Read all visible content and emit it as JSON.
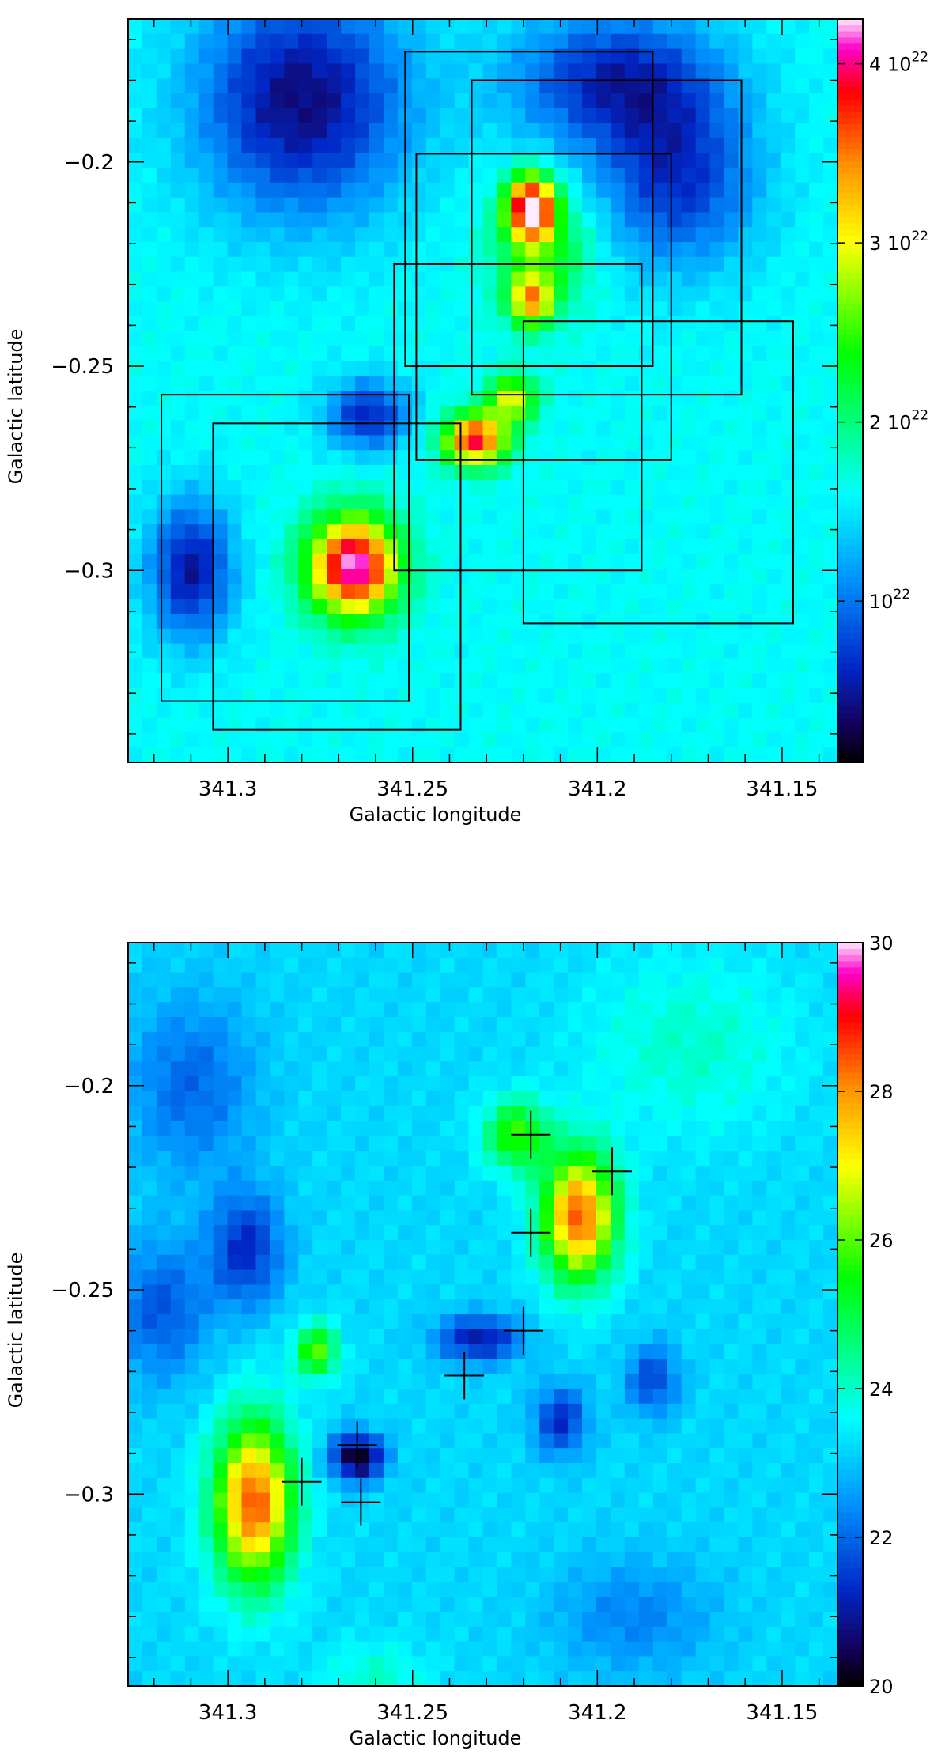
{
  "chart_data": [
    {
      "type": "heatmap",
      "title": "",
      "xlabel": "Galactic longitude",
      "ylabel": "Galactic latitude",
      "x_ticks": [
        "341.3",
        "341.25",
        "341.2",
        "341.15"
      ],
      "y_ticks": [
        "−0.2",
        "−0.25",
        "−0.3"
      ],
      "x_tick_values": [
        341.3,
        341.25,
        341.2,
        341.15
      ],
      "y_tick_values": [
        -0.2,
        -0.25,
        -0.3
      ],
      "xlim": [
        341.327,
        341.135
      ],
      "ylim": [
        -0.347,
        -0.165
      ],
      "colorbar": {
        "range": [
          1e+21,
          4.25e+22
        ],
        "ticks": [
          {
            "value": 4e+22,
            "mant": "4",
            "exp": "22"
          },
          {
            "value": 3e+22,
            "mant": "3",
            "exp": "22"
          },
          {
            "value": 2e+22,
            "mant": "2",
            "exp": "22"
          },
          {
            "value": 1e+22,
            "mant": "",
            "exp": "22"
          }
        ],
        "base": "10"
      },
      "background": 1.6e+22,
      "sources": [
        {
          "l": 341.218,
          "b": -0.211,
          "peak": 4.2e+22,
          "sl": 0.0045,
          "sb": 0.0055
        },
        {
          "l": 341.218,
          "b": -0.234,
          "peak": 3.2e+22,
          "sl": 0.004,
          "sb": 0.0045
        },
        {
          "l": 341.233,
          "b": -0.268,
          "peak": 3.9e+22,
          "sl": 0.006,
          "sb": 0.0045
        },
        {
          "l": 341.223,
          "b": -0.258,
          "peak": 3e+22,
          "sl": 0.0045,
          "sb": 0.004
        },
        {
          "l": 341.266,
          "b": -0.299,
          "peak": 4.25e+22,
          "sl": 0.0085,
          "sb": 0.0085
        },
        {
          "l": 341.215,
          "b": -0.222,
          "peak": 2.4e+22,
          "sl": 0.009,
          "sb": 0.01
        },
        {
          "l": 341.262,
          "b": -0.262,
          "peak": 6e+21,
          "sl": 0.008,
          "sb": 0.006
        },
        {
          "l": 341.178,
          "b": -0.205,
          "peak": 7e+21,
          "sl": 0.015,
          "sb": 0.015
        },
        {
          "l": 341.31,
          "b": -0.3,
          "peak": 5e+21,
          "sl": 0.008,
          "sb": 0.012
        },
        {
          "l": 341.28,
          "b": -0.185,
          "peak": 4e+21,
          "sl": 0.02,
          "sb": 0.02
        },
        {
          "l": 341.195,
          "b": -0.18,
          "peak": 6e+21,
          "sl": 0.02,
          "sb": 0.012
        }
      ],
      "boxes": [
        {
          "l1": 341.252,
          "l2": 341.185,
          "b1": -0.173,
          "b2": -0.25
        },
        {
          "l1": 341.234,
          "l2": 341.161,
          "b1": -0.18,
          "b2": -0.257
        },
        {
          "l1": 341.249,
          "l2": 341.18,
          "b1": -0.198,
          "b2": -0.273
        },
        {
          "l1": 341.255,
          "l2": 341.188,
          "b1": -0.225,
          "b2": -0.3
        },
        {
          "l1": 341.22,
          "l2": 341.147,
          "b1": -0.239,
          "b2": -0.313
        },
        {
          "l1": 341.318,
          "l2": 341.251,
          "b1": -0.257,
          "b2": -0.332
        },
        {
          "l1": 341.304,
          "l2": 341.237,
          "b1": -0.264,
          "b2": -0.339
        }
      ]
    },
    {
      "type": "heatmap",
      "title": "",
      "xlabel": "Galactic longitude",
      "ylabel": "Galactic latitude",
      "x_ticks": [
        "341.3",
        "341.25",
        "341.2",
        "341.15"
      ],
      "y_ticks": [
        "−0.2",
        "−0.25",
        "−0.3"
      ],
      "x_tick_values": [
        341.3,
        341.25,
        341.2,
        341.15
      ],
      "y_tick_values": [
        -0.2,
        -0.25,
        -0.3
      ],
      "xlim": [
        341.327,
        341.135
      ],
      "ylim": [
        -0.347,
        -0.165
      ],
      "colorbar": {
        "range": [
          20,
          30
        ],
        "ticks": [
          {
            "value": 30,
            "label": "30"
          },
          {
            "value": 28,
            "label": "28"
          },
          {
            "value": 26,
            "label": "26"
          },
          {
            "value": 24,
            "label": "24"
          },
          {
            "value": 22,
            "label": "22"
          },
          {
            "value": 20,
            "label": "20"
          }
        ]
      },
      "background": 23.2,
      "sources": [
        {
          "l": 341.205,
          "b": -0.232,
          "peak": 28.5,
          "sl": 0.007,
          "sb": 0.011
        },
        {
          "l": 341.222,
          "b": -0.212,
          "peak": 25.8,
          "sl": 0.006,
          "sb": 0.006
        },
        {
          "l": 341.293,
          "b": -0.302,
          "peak": 28.5,
          "sl": 0.0075,
          "sb": 0.014
        },
        {
          "l": 341.276,
          "b": -0.265,
          "peak": 26.0,
          "sl": 0.004,
          "sb": 0.0045
        },
        {
          "l": 341.265,
          "b": -0.291,
          "peak": 20.0,
          "sl": 0.005,
          "sb": 0.004
        },
        {
          "l": 341.232,
          "b": -0.262,
          "peak": 21.0,
          "sl": 0.008,
          "sb": 0.004
        },
        {
          "l": 341.21,
          "b": -0.282,
          "peak": 21.3,
          "sl": 0.005,
          "sb": 0.006
        },
        {
          "l": 341.185,
          "b": -0.272,
          "peak": 21.6,
          "sl": 0.005,
          "sb": 0.006
        },
        {
          "l": 341.295,
          "b": -0.24,
          "peak": 21.3,
          "sl": 0.007,
          "sb": 0.01
        },
        {
          "l": 341.318,
          "b": -0.255,
          "peak": 21.8,
          "sl": 0.009,
          "sb": 0.012
        },
        {
          "l": 341.31,
          "b": -0.2,
          "peak": 22.0,
          "sl": 0.012,
          "sb": 0.015
        },
        {
          "l": 341.175,
          "b": -0.19,
          "peak": 24.0,
          "sl": 0.02,
          "sb": 0.015
        },
        {
          "l": 341.19,
          "b": -0.33,
          "peak": 22.3,
          "sl": 0.015,
          "sb": 0.01
        },
        {
          "l": 341.26,
          "b": -0.345,
          "peak": 24.0,
          "sl": 0.01,
          "sb": 0.006
        }
      ],
      "crosses": [
        {
          "l": 341.218,
          "b": -0.212
        },
        {
          "l": 341.196,
          "b": -0.221
        },
        {
          "l": 341.218,
          "b": -0.236
        },
        {
          "l": 341.22,
          "b": -0.26
        },
        {
          "l": 341.236,
          "b": -0.271
        },
        {
          "l": 341.265,
          "b": -0.288
        },
        {
          "l": 341.28,
          "b": -0.297
        },
        {
          "l": 341.264,
          "b": -0.302
        }
      ]
    }
  ]
}
